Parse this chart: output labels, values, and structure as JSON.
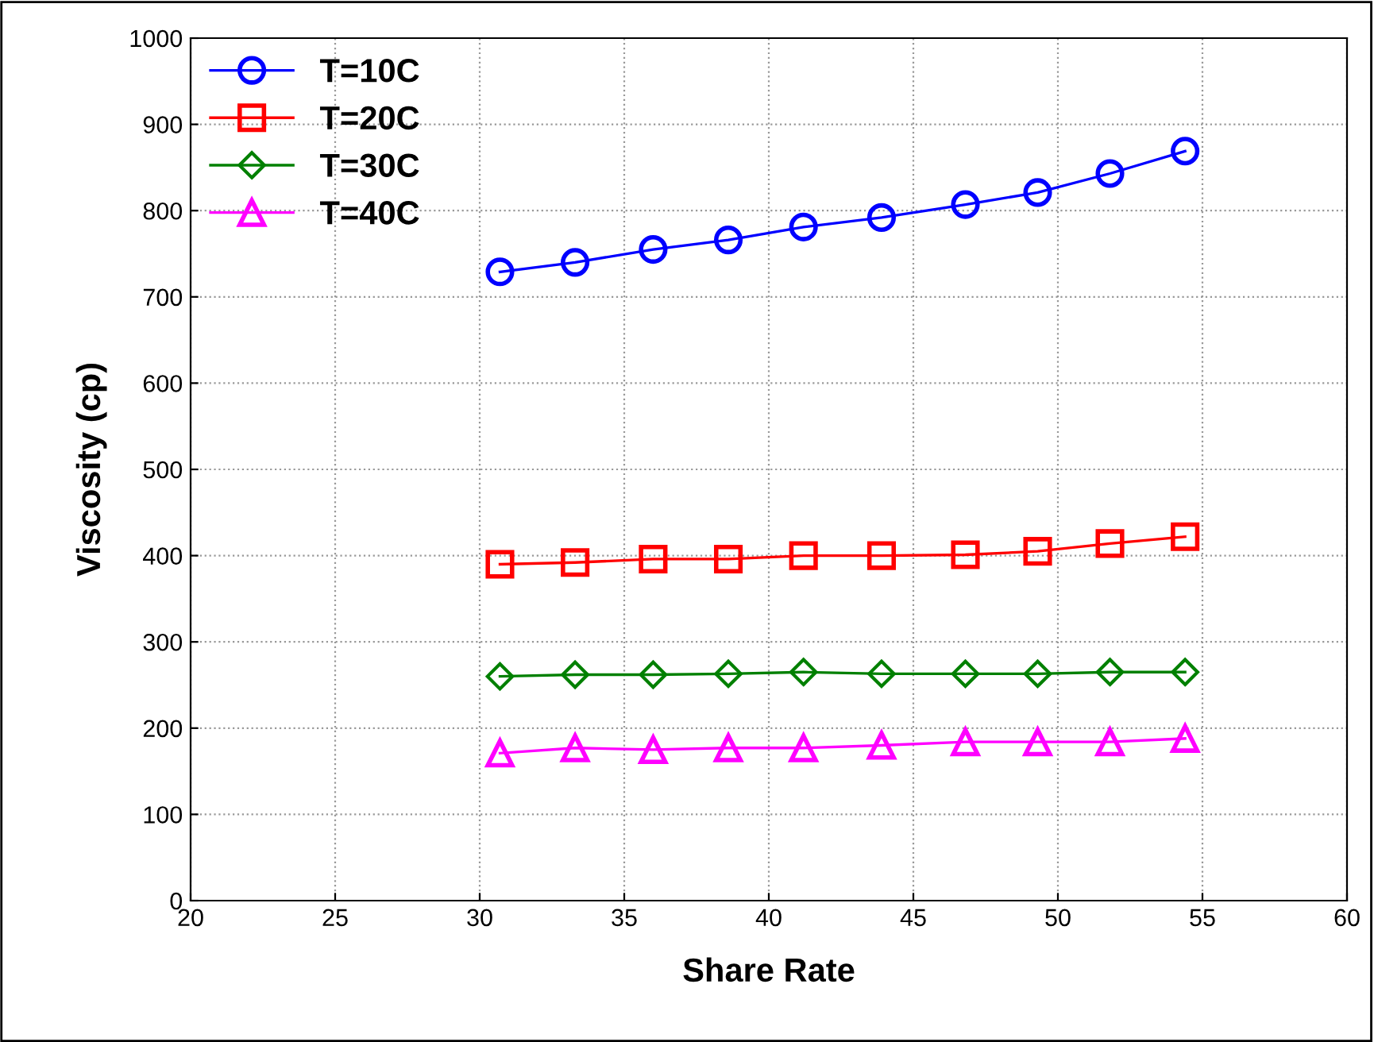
{
  "chart_data": {
    "type": "line",
    "xlabel": "Share Rate",
    "ylabel": "Viscosity (cp)",
    "x": [
      30.7,
      33.3,
      36.0,
      38.6,
      41.2,
      43.9,
      46.8,
      49.3,
      51.8,
      54.4
    ],
    "series": [
      {
        "name": "T=10C",
        "color": "#0000ff",
        "marker": "circle",
        "values": [
          729,
          740,
          755,
          766,
          781,
          792,
          807,
          821,
          843,
          869
        ]
      },
      {
        "name": "T=20C",
        "color": "#ff0000",
        "marker": "square",
        "values": [
          390,
          392,
          396,
          396,
          400,
          400,
          401,
          405,
          414,
          422
        ]
      },
      {
        "name": "T=30C",
        "color": "#008000",
        "marker": "diamond",
        "values": [
          260,
          262,
          262,
          263,
          265,
          263,
          263,
          263,
          265,
          265
        ]
      },
      {
        "name": "T=40C",
        "color": "#ff00ff",
        "marker": "triangle",
        "values": [
          171,
          177,
          175,
          177,
          177,
          180,
          184,
          184,
          184,
          188
        ]
      }
    ],
    "xlim": [
      20,
      60
    ],
    "xticks": [
      20,
      25,
      30,
      35,
      40,
      45,
      50,
      55,
      60
    ],
    "ylim": [
      0,
      1000
    ],
    "yticks": [
      0,
      100,
      200,
      300,
      400,
      500,
      600,
      700,
      800,
      900,
      1000
    ],
    "grid": true,
    "legend": "top left",
    "line_style": "solid"
  }
}
